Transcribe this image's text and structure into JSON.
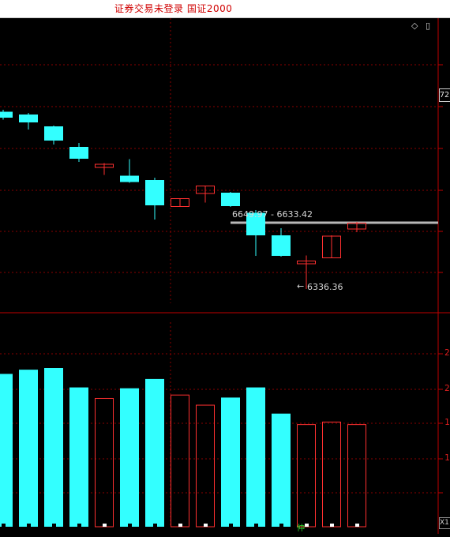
{
  "window": {
    "title": "证券交易未登录  国证2000"
  },
  "icons": {
    "diamond": "diamond-icon",
    "window": "window-icon"
  },
  "price_axis": {
    "visible_label": "72"
  },
  "annotations": {
    "range_label": "6649.97 - 6633.42",
    "low_label": "6336.36"
  },
  "volume_axis": {
    "tick_labels": [
      "2",
      "2",
      "1",
      "1"
    ]
  },
  "misc": {
    "bottom_glyph": "仲",
    "zoom_label": "X1"
  },
  "colors": {
    "up": "#ff3030",
    "down": "#33ffff",
    "grid": "#8a0000",
    "divider": "#c00000"
  },
  "chart_data": {
    "type": "candlestick",
    "candles": [
      {
        "open": 6785,
        "close": 6770,
        "high": 6790,
        "low": 6765,
        "dir": "down"
      },
      {
        "open": 6778,
        "close": 6758,
        "high": 6782,
        "low": 6740,
        "dir": "down"
      },
      {
        "open": 6748,
        "close": 6712,
        "high": 6750,
        "low": 6702,
        "dir": "down"
      },
      {
        "open": 6696,
        "close": 6666,
        "high": 6706,
        "low": 6658,
        "dir": "down"
      },
      {
        "open": 6644,
        "close": 6652,
        "high": 6655,
        "low": 6625,
        "dir": "up"
      },
      {
        "open": 6623,
        "close": 6607,
        "high": 6665,
        "low": 6605,
        "dir": "down"
      },
      {
        "open": 6612,
        "close": 6548,
        "high": 6618,
        "low": 6512,
        "dir": "down"
      },
      {
        "open": 6545,
        "close": 6565,
        "high": 6566,
        "low": 6544,
        "dir": "up"
      },
      {
        "open": 6578,
        "close": 6597,
        "high": 6598,
        "low": 6555,
        "dir": "up"
      },
      {
        "open": 6580,
        "close": 6546,
        "high": 6582,
        "low": 6544,
        "dir": "down"
      },
      {
        "open": 6529,
        "close": 6472,
        "high": 6536,
        "low": 6420,
        "dir": "down"
      },
      {
        "open": 6472,
        "close": 6420,
        "high": 6490,
        "low": 6418,
        "dir": "down"
      },
      {
        "open": 6400,
        "close": 6407,
        "high": 6421,
        "low": 6336,
        "dir": "up"
      },
      {
        "open": 6415,
        "close": 6470,
        "high": 6472,
        "low": 6414,
        "dir": "up"
      },
      {
        "open": 6488,
        "close": 6503,
        "high": 6506,
        "low": 6480,
        "dir": "up"
      }
    ],
    "volume": [
      1.81,
      1.86,
      1.88,
      1.65,
      1.52,
      1.64,
      1.75,
      1.56,
      1.44,
      1.53,
      1.65,
      1.34,
      1.21,
      1.24,
      1.21
    ]
  }
}
